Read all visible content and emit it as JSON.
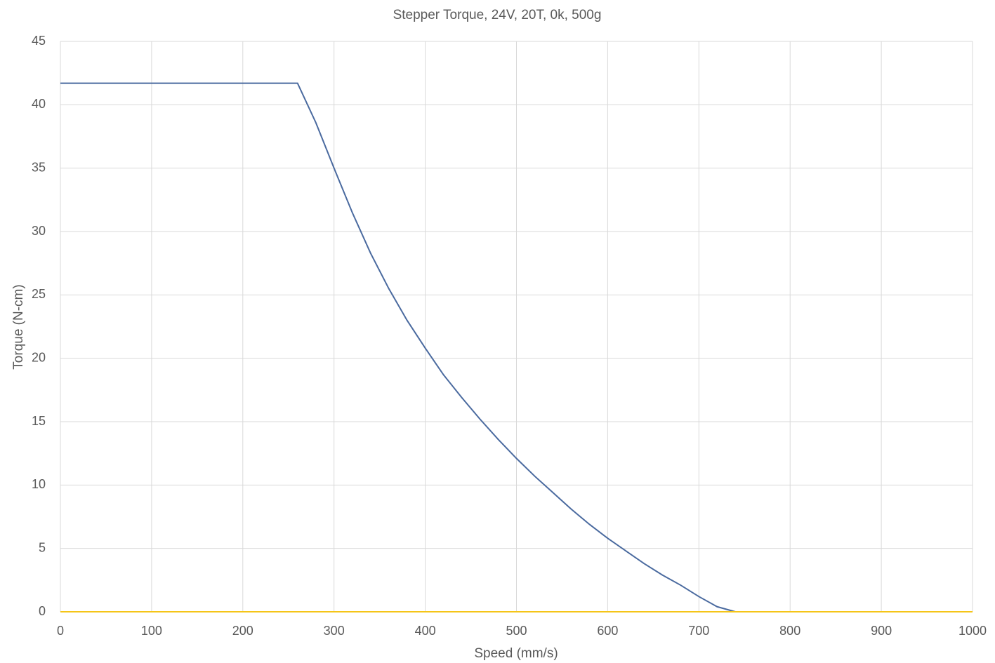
{
  "chart_data": {
    "type": "line",
    "title": "Stepper Torque, 24V, 20T, 0k, 500g",
    "x_label": "Speed (mm/s)",
    "y_label": "Torque (N-cm)",
    "xlim": [
      0,
      1000
    ],
    "xticks": [
      0,
      100,
      200,
      300,
      400,
      500,
      600,
      700,
      800,
      900,
      1000
    ],
    "ylim": [
      0,
      45
    ],
    "yticks": [
      0,
      5,
      10,
      15,
      20,
      25,
      30,
      35,
      40,
      45
    ],
    "grid": true,
    "series": [
      {
        "color": "#4a6a9f",
        "x": [
          0,
          260,
          280,
          300,
          320,
          340,
          360,
          380,
          400,
          420,
          440,
          460,
          480,
          500,
          520,
          540,
          560,
          580,
          600,
          620,
          640,
          660,
          680,
          700,
          720,
          740
        ],
        "values": [
          41.7,
          41.7,
          38.6,
          35.0,
          31.5,
          28.3,
          25.5,
          23.0,
          20.8,
          18.7,
          16.9,
          15.2,
          13.6,
          12.1,
          10.7,
          9.4,
          8.1,
          6.9,
          5.8,
          4.8,
          3.8,
          2.9,
          2.1,
          1.2,
          0.4,
          0
        ]
      },
      {
        "color": "#f5c518",
        "x": [
          0,
          1000
        ],
        "values": [
          0,
          0
        ]
      }
    ]
  }
}
